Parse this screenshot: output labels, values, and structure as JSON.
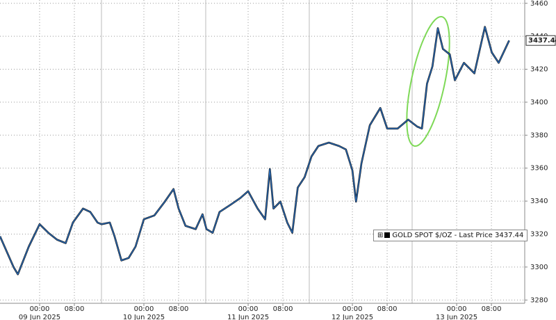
{
  "chart_data": {
    "type": "line",
    "x": [
      "2025-06-08T14:53",
      "2025-06-08T18:00",
      "2025-06-08T19:00",
      "2025-06-08T21:30",
      "2025-06-09T00:00",
      "2025-06-09T02:00",
      "2025-06-09T04:00",
      "2025-06-09T06:00",
      "2025-06-09T07:40",
      "2025-06-09T10:00",
      "2025-06-09T11:40",
      "2025-06-09T13:20",
      "2025-06-09T14:15",
      "2025-06-09T16:10",
      "2025-06-09T17:15",
      "2025-06-09T18:50",
      "2025-06-09T20:30",
      "2025-06-09T22:05",
      "2025-06-10T00:00",
      "2025-06-10T02:25",
      "2025-06-10T04:50",
      "2025-06-10T06:50",
      "2025-06-10T08:00",
      "2025-06-10T09:35",
      "2025-06-10T11:55",
      "2025-06-10T13:30",
      "2025-06-10T14:25",
      "2025-06-10T15:50",
      "2025-06-10T17:25",
      "2025-06-10T19:50",
      "2025-06-10T22:10",
      "2025-06-11T00:00",
      "2025-06-11T02:10",
      "2025-06-11T03:55",
      "2025-06-11T05:00",
      "2025-06-11T05:50",
      "2025-06-11T07:25",
      "2025-06-11T09:00",
      "2025-06-11T10:10",
      "2025-06-11T11:25",
      "2025-06-11T13:00",
      "2025-06-11T14:35",
      "2025-06-11T16:10",
      "2025-06-11T18:35",
      "2025-06-11T20:55",
      "2025-06-11T22:30",
      "2025-06-12T00:00",
      "2025-06-12T00:50",
      "2025-06-12T02:05",
      "2025-06-12T04:00",
      "2025-06-12T06:25",
      "2025-06-12T08:00",
      "2025-06-12T10:25",
      "2025-06-12T12:50",
      "2025-06-12T14:55",
      "2025-06-12T16:00",
      "2025-06-12T17:10",
      "2025-06-12T18:25",
      "2025-06-12T19:40",
      "2025-06-12T20:50",
      "2025-06-12T22:25",
      "2025-06-12T23:35",
      "2025-06-13T01:40",
      "2025-06-13T04:05",
      "2025-06-13T06:30",
      "2025-06-13T08:05",
      "2025-06-13T09:40",
      "2025-06-13T12:05"
    ],
    "series": [
      {
        "name": "GOLD SPOT $/OZ",
        "color": "#2a6fbf",
        "values": [
          3318.7,
          3300,
          3295.6,
          3312.4,
          3326,
          3320.8,
          3316.6,
          3314.5,
          3327,
          3335.5,
          3333.4,
          3327,
          3326,
          3327,
          3318.7,
          3304,
          3305.5,
          3312.4,
          3329,
          3331.3,
          3339.7,
          3347.3,
          3335.5,
          3325,
          3323,
          3332,
          3323,
          3320.8,
          3333.4,
          3337.6,
          3341.8,
          3346,
          3335.5,
          3329,
          3359.5,
          3335.5,
          3339.7,
          3327,
          3320.8,
          3348.2,
          3354.5,
          3367.1,
          3373.4,
          3375.5,
          3373.4,
          3371.3,
          3358.7,
          3339.7,
          3363,
          3386,
          3396.5,
          3384,
          3384,
          3389.4,
          3385.2,
          3384,
          3411.2,
          3421.7,
          3444.9,
          3432.3,
          3429,
          3413.3,
          3423.9,
          3417.5,
          3445.7,
          3430.2,
          3423.9,
          3437.44
        ]
      }
    ],
    "legend_suffix": "- Last Price",
    "last_value": 3437.44,
    "xlim": [
      "2025-06-08T14:53",
      "2025-06-13T15:40"
    ],
    "xticks": [
      {
        "value": "2025-06-09T00:00",
        "label": "00:00"
      },
      {
        "value": "2025-06-09T08:00",
        "label": "08:00"
      },
      {
        "value": "2025-06-10T00:00",
        "label": "00:00"
      },
      {
        "value": "2025-06-10T08:00",
        "label": "08:00"
      },
      {
        "value": "2025-06-11T00:00",
        "label": "00:00"
      },
      {
        "value": "2025-06-11T08:00",
        "label": "08:00"
      },
      {
        "value": "2025-06-12T00:00",
        "label": "00:00"
      },
      {
        "value": "2025-06-12T08:00",
        "label": "08:00"
      },
      {
        "value": "2025-06-13T00:00",
        "label": "00:00"
      },
      {
        "value": "2025-06-13T08:00",
        "label": "08:00"
      }
    ],
    "xticks_major": [
      {
        "value": "2025-06-09T00:00",
        "label": "09 Jun 2025"
      },
      {
        "value": "2025-06-10T00:00",
        "label": "10 Jun 2025"
      },
      {
        "value": "2025-06-11T00:00",
        "label": "11 Jun 2025"
      },
      {
        "value": "2025-06-12T00:00",
        "label": "12 Jun 2025"
      },
      {
        "value": "2025-06-13T00:00",
        "label": "13 Jun 2025"
      }
    ],
    "ylim": [
      3278,
      3462
    ],
    "yticks": [
      3280,
      3300,
      3320,
      3340,
      3360,
      3380,
      3400,
      3420,
      3440,
      3460
    ],
    "grid": true
  }
}
